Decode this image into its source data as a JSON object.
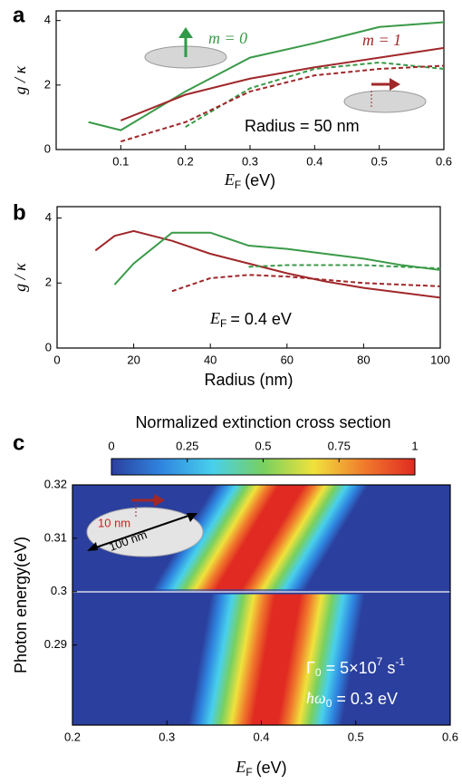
{
  "chart_data": [
    {
      "type": "line",
      "label": "a",
      "x_label": {
        "symbol": "E",
        "subscript": "F",
        "unit": "(eV)"
      },
      "y_label": "g / κ",
      "xlim": [
        0,
        0.6
      ],
      "xticks": [
        0.1,
        0.2,
        0.3,
        0.4,
        0.5,
        0.6
      ],
      "ylim": [
        0,
        4.3
      ],
      "yticks": [
        0,
        2,
        4
      ],
      "series": [
        {
          "color": "#3a9a48",
          "dash": false,
          "x": [
            0.05,
            0.1,
            0.2,
            0.3,
            0.4,
            0.5,
            0.6
          ],
          "values": [
            0.85,
            0.6,
            1.8,
            2.85,
            3.3,
            3.8,
            3.95
          ]
        },
        {
          "color": "#a0282a",
          "dash": false,
          "x": [
            0.1,
            0.2,
            0.3,
            0.4,
            0.5,
            0.6
          ],
          "values": [
            0.9,
            1.7,
            2.2,
            2.55,
            2.85,
            3.15
          ]
        },
        {
          "color": "#3a9a48",
          "dash": true,
          "x": [
            0.2,
            0.3,
            0.4,
            0.5,
            0.6
          ],
          "values": [
            0.7,
            1.9,
            2.5,
            2.7,
            2.5
          ]
        },
        {
          "color": "#a0282a",
          "dash": true,
          "x": [
            0.1,
            0.2,
            0.3,
            0.4,
            0.5,
            0.6
          ],
          "values": [
            0.25,
            0.85,
            1.8,
            2.3,
            2.5,
            2.6
          ]
        }
      ],
      "annotations": {
        "m0": "m = 0",
        "m1": "m = 1",
        "radius": "Radius = 50 nm"
      }
    },
    {
      "type": "line",
      "label": "b",
      "x_label": "Radius (nm)",
      "y_label": "g / κ",
      "xlim": [
        0,
        100
      ],
      "xticks": [
        0,
        20,
        40,
        60,
        80,
        100
      ],
      "ylim": [
        0,
        4.35
      ],
      "yticks": [
        0,
        2,
        4
      ],
      "series": [
        {
          "color": "#a0282a",
          "dash": false,
          "x": [
            10,
            15,
            20,
            30,
            40,
            50,
            60,
            70,
            80,
            90,
            100
          ],
          "values": [
            3.0,
            3.45,
            3.6,
            3.3,
            2.9,
            2.6,
            2.3,
            2.05,
            1.85,
            1.7,
            1.55
          ]
        },
        {
          "color": "#3a9a48",
          "dash": false,
          "x": [
            15,
            20,
            30,
            40,
            50,
            60,
            70,
            80,
            90,
            100
          ],
          "values": [
            1.95,
            2.6,
            3.55,
            3.55,
            3.15,
            3.05,
            2.9,
            2.75,
            2.55,
            2.4
          ]
        },
        {
          "color": "#3a9a48",
          "dash": true,
          "x": [
            50,
            60,
            70,
            80,
            90,
            100
          ],
          "values": [
            2.5,
            2.55,
            2.55,
            2.55,
            2.5,
            2.45
          ]
        },
        {
          "color": "#a0282a",
          "dash": true,
          "x": [
            30,
            40,
            50,
            60,
            70,
            80,
            90,
            100
          ],
          "values": [
            1.75,
            2.15,
            2.25,
            2.2,
            2.1,
            2.0,
            1.95,
            1.9
          ]
        }
      ],
      "annotations": {
        "ef": {
          "symbol": "E",
          "subscript": "F",
          "text": "= 0.4 eV"
        }
      }
    },
    {
      "type": "heatmap",
      "label": "c",
      "title": "Normalized extinction cross section",
      "x_label": {
        "symbol": "E",
        "subscript": "F",
        "unit": "(eV)"
      },
      "y_label": "Photon energy(eV)",
      "xlim": [
        0.2,
        0.6
      ],
      "xticks": [
        0.2,
        0.3,
        0.4,
        0.5,
        0.6
      ],
      "ylim": [
        0.275,
        0.32
      ],
      "yticks": [
        0.29,
        0.3,
        0.31,
        0.32
      ],
      "clim": [
        0,
        1
      ],
      "colorbar_ticks": [
        0,
        0.25,
        0.5,
        0.75,
        1
      ],
      "colormap": [
        "#2b3f9e",
        "#2f86e0",
        "#48d0ec",
        "#78d060",
        "#f0e23c",
        "#f07a2c",
        "#e02a22"
      ],
      "annotations": {
        "inset_small": "10 nm",
        "inset_large": "100 nm",
        "gamma": {
          "symbol": "Γ",
          "sub": "0",
          "text": " = 5×10",
          "exp": "7",
          "unit": " s",
          "unit_exp": "-1"
        },
        "omega": {
          "symbol": "ħω",
          "sub": "0",
          "text": " = 0.3 eV"
        }
      }
    }
  ]
}
